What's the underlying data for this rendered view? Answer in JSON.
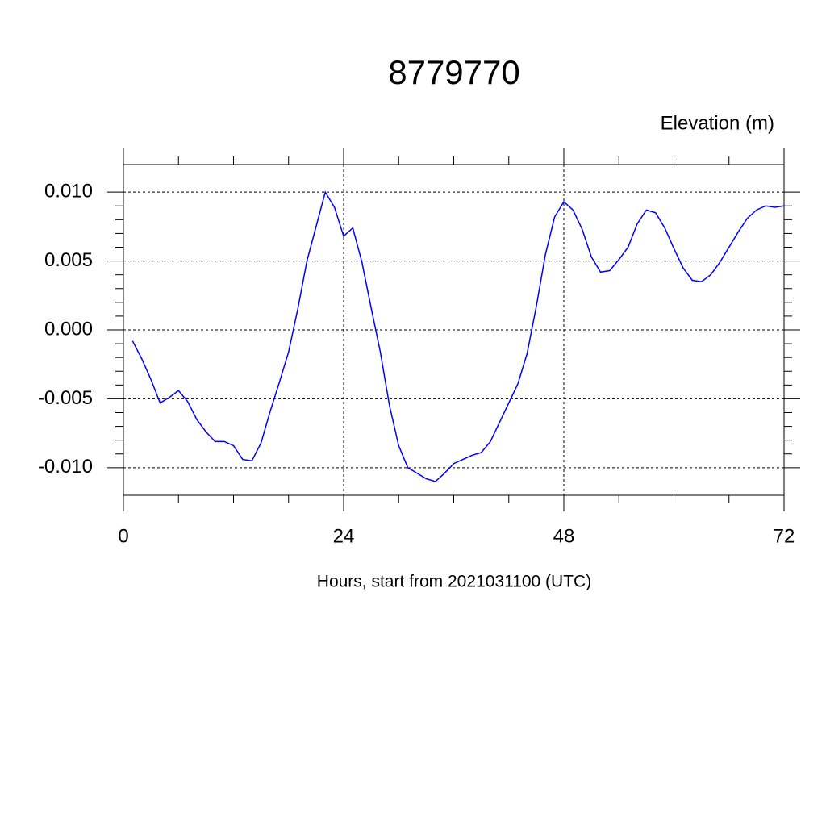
{
  "chart_data": {
    "type": "line",
    "title": "8779770",
    "subtitle": "Elevation (m)",
    "x_label": "Hours, start from 2021031100 (UTC)",
    "x": [
      1,
      2,
      3,
      4,
      5,
      6,
      7,
      8,
      9,
      10,
      11,
      12,
      13,
      14,
      15,
      16,
      17,
      18,
      19,
      20,
      21,
      22,
      23,
      24,
      25,
      26,
      27,
      28,
      29,
      30,
      31,
      32,
      33,
      34,
      35,
      36,
      37,
      38,
      39,
      40,
      41,
      42,
      43,
      44,
      45,
      46,
      47,
      48,
      49,
      50,
      51,
      52,
      53,
      54,
      55,
      56,
      57,
      58,
      59,
      60,
      61,
      62,
      63,
      64,
      65,
      66,
      67,
      68,
      69,
      70,
      71,
      72
    ],
    "series": [
      {
        "color": "#0000ff",
        "values": [
          -0.0008,
          -0.0021,
          -0.0036,
          -0.0053,
          -0.0049,
          -0.0044,
          -0.0052,
          -0.0065,
          -0.0074,
          -0.0081,
          -0.0081,
          -0.0084,
          -0.0094,
          -0.0095,
          -0.0082,
          -0.0059,
          -0.0038,
          -0.0016,
          0.0015,
          0.005,
          0.0075,
          0.01,
          0.0089,
          0.0068,
          0.0074,
          0.0049,
          0.0016,
          -0.0016,
          -0.0055,
          -0.0084,
          -0.01,
          -0.0104,
          -0.0108,
          -0.011,
          -0.0104,
          -0.0097,
          -0.0094,
          -0.0091,
          -0.0089,
          -0.0081,
          -0.0067,
          -0.0053,
          -0.0039,
          -0.0017,
          0.0017,
          0.0055,
          0.0082,
          0.0093,
          0.0087,
          0.0073,
          0.0053,
          0.0042,
          0.0043,
          0.0051,
          0.006,
          0.0077,
          0.0087,
          0.0085,
          0.0074,
          0.0059,
          0.0045,
          0.0036,
          0.0035,
          0.004,
          0.0049,
          0.006,
          0.0071,
          0.0081,
          0.0087,
          0.009,
          0.0089,
          0.009
        ]
      }
    ],
    "xlim": [
      0,
      72
    ],
    "xticks": [
      0,
      24,
      48,
      72
    ],
    "ylim": [
      -0.012,
      0.012
    ],
    "yticks": [
      {
        "value": -0.01,
        "label": "-0.010"
      },
      {
        "value": -0.005,
        "label": "-0.005"
      },
      {
        "value": 0,
        "label": "0.000"
      },
      {
        "value": 0.005,
        "label": "0.005"
      },
      {
        "value": 0.01,
        "label": "0.010"
      }
    ],
    "grid": true
  }
}
